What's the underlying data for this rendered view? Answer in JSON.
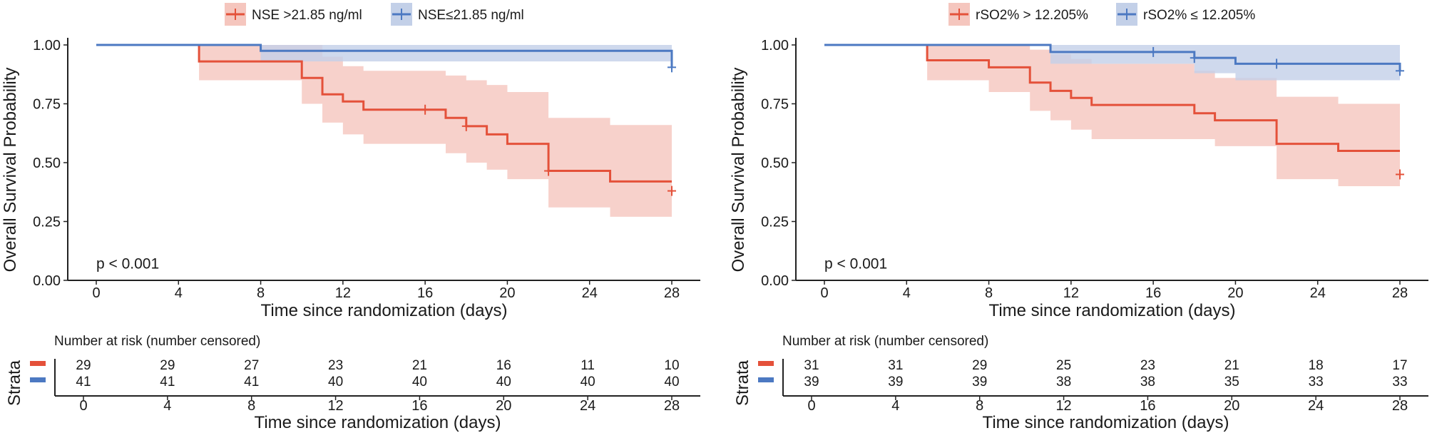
{
  "colors": {
    "high": "#E4513A",
    "high_band": "#F5C6BE",
    "low": "#4C79C2",
    "low_band": "#C3D0E8",
    "axis": "#222222",
    "text": "#1a1a1a"
  },
  "chart_data": [
    {
      "type": "line",
      "title": "",
      "xlabel": "Time since randomization (days)",
      "ylabel": "Overall Survival Probability",
      "xlim": [
        0,
        28
      ],
      "ylim": [
        0,
        1
      ],
      "xticks": [
        0,
        4,
        8,
        12,
        16,
        20,
        24,
        28
      ],
      "yticks": [
        "0.00",
        "0.25",
        "0.50",
        "0.75",
        "1.00"
      ],
      "pvalue_text": "p < 0.001",
      "legend_position": "top",
      "series": [
        {
          "name": "NSE >21.85 ng/ml",
          "key": "high",
          "steps": [
            [
              0,
              1.0
            ],
            [
              5,
              0.93
            ],
            [
              10,
              0.86
            ],
            [
              11,
              0.79
            ],
            [
              12,
              0.76
            ],
            [
              13,
              0.725
            ],
            [
              17,
              0.69
            ],
            [
              18,
              0.655
            ],
            [
              19,
              0.62
            ],
            [
              20,
              0.58
            ],
            [
              22,
              0.465
            ],
            [
              25,
              0.42
            ],
            [
              28,
              0.42
            ]
          ],
          "lower": [
            1.0,
            0.85,
            0.75,
            0.67,
            0.62,
            0.58,
            0.54,
            0.5,
            0.47,
            0.43,
            0.31,
            0.27,
            0.27
          ],
          "upper": [
            1.0,
            1.0,
            1.0,
            0.95,
            0.91,
            0.89,
            0.87,
            0.85,
            0.83,
            0.8,
            0.69,
            0.66,
            0.66
          ],
          "censors": [
            [
              16,
              0.725
            ],
            [
              18,
              0.655
            ],
            [
              22,
              0.465
            ],
            [
              28,
              0.38
            ]
          ]
        },
        {
          "name": "NSE≤21.85 ng/ml",
          "key": "low",
          "steps": [
            [
              0,
              1.0
            ],
            [
              8,
              0.975
            ],
            [
              28,
              0.975
            ],
            [
              28,
              0.905
            ]
          ],
          "lower": [
            1.0,
            0.93,
            0.93,
            0.93
          ],
          "upper": [
            1.0,
            1.0,
            1.0,
            1.0
          ],
          "censors": [
            [
              28,
              0.905
            ]
          ]
        }
      ],
      "risk_table": {
        "title": "Number at risk (number censored)",
        "strata_label": "Strata",
        "xlabel": "Time since randomization (days)",
        "rows": [
          {
            "key": "high",
            "values": [
              "29",
              "29",
              "27",
              "23",
              "21",
              "16",
              "11",
              "10"
            ]
          },
          {
            "key": "low",
            "values": [
              "41",
              "41",
              "41",
              "40",
              "40",
              "40",
              "40",
              "40"
            ]
          }
        ]
      }
    },
    {
      "type": "line",
      "title": "",
      "xlabel": "Time since randomization (days)",
      "ylabel": "Overall Survival Probability",
      "xlim": [
        0,
        28
      ],
      "ylim": [
        0,
        1
      ],
      "xticks": [
        0,
        4,
        8,
        12,
        16,
        20,
        24,
        28
      ],
      "yticks": [
        "0.00",
        "0.25",
        "0.50",
        "0.75",
        "1.00"
      ],
      "pvalue_text": "p < 0.001",
      "legend_position": "top",
      "series": [
        {
          "name": "rSO2% > 12.205%",
          "key": "high",
          "steps": [
            [
              0,
              1.0
            ],
            [
              5,
              0.935
            ],
            [
              8,
              0.905
            ],
            [
              10,
              0.84
            ],
            [
              11,
              0.805
            ],
            [
              12,
              0.775
            ],
            [
              13,
              0.745
            ],
            [
              18,
              0.71
            ],
            [
              19,
              0.68
            ],
            [
              22,
              0.58
            ],
            [
              25,
              0.55
            ],
            [
              28,
              0.55
            ]
          ],
          "lower": [
            1.0,
            0.85,
            0.8,
            0.72,
            0.68,
            0.64,
            0.6,
            0.6,
            0.57,
            0.43,
            0.4,
            0.4
          ],
          "upper": [
            1.0,
            1.0,
            1.0,
            0.98,
            0.96,
            0.94,
            0.92,
            0.89,
            0.86,
            0.78,
            0.75,
            0.75
          ],
          "censors": [
            [
              28,
              0.45
            ]
          ]
        },
        {
          "name": "rSO2% ≤ 12.205%",
          "key": "low",
          "steps": [
            [
              0,
              1.0
            ],
            [
              11,
              0.97
            ],
            [
              18,
              0.945
            ],
            [
              20,
              0.92
            ],
            [
              28,
              0.92
            ],
            [
              28,
              0.89
            ]
          ],
          "lower": [
            1.0,
            0.92,
            0.88,
            0.85,
            0.85,
            0.85
          ],
          "upper": [
            1.0,
            1.0,
            1.0,
            1.0,
            1.0,
            1.0
          ],
          "censors": [
            [
              16,
              0.97
            ],
            [
              18,
              0.945
            ],
            [
              22,
              0.92
            ],
            [
              28,
              0.89
            ]
          ]
        }
      ],
      "risk_table": {
        "title": "Number at risk (number censored)",
        "strata_label": "Strata",
        "xlabel": "Time since randomization (days)",
        "rows": [
          {
            "key": "high",
            "values": [
              "31",
              "31",
              "29",
              "25",
              "23",
              "21",
              "18",
              "17"
            ]
          },
          {
            "key": "low",
            "values": [
              "39",
              "39",
              "39",
              "38",
              "38",
              "35",
              "33",
              "33"
            ]
          }
        ]
      }
    }
  ]
}
